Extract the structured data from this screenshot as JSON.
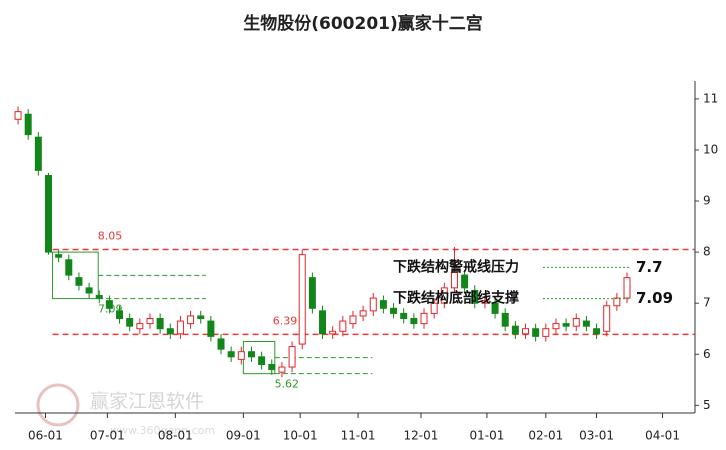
{
  "chart_data": {
    "type": "candlestick",
    "title": "生物股份(600201)赢家十二宫",
    "open": [
      10.6,
      10.7,
      10.25,
      9.5,
      7.95,
      7.85,
      7.5,
      7.3,
      7.15,
      7.05,
      6.85,
      6.7,
      6.5,
      6.6,
      6.7,
      6.5,
      6.4,
      6.6,
      6.75,
      6.65,
      6.3,
      6.05,
      5.9,
      6.05,
      5.95,
      5.8,
      5.65,
      5.75,
      6.2,
      7.5,
      6.85,
      6.4,
      6.45,
      6.6,
      6.75,
      6.85,
      7.05,
      6.9,
      6.8,
      6.7,
      6.6,
      6.8,
      7.0,
      7.3,
      7.55,
      7.25,
      7.0,
      7.0,
      6.8,
      6.55,
      6.4,
      6.5,
      6.35,
      6.5,
      6.6,
      6.55,
      6.65,
      6.5,
      6.45,
      6.95,
      7.1
    ],
    "high": [
      10.85,
      10.8,
      10.35,
      9.55,
      8.05,
      7.95,
      7.6,
      7.4,
      7.25,
      7.15,
      6.95,
      6.8,
      6.7,
      6.8,
      6.8,
      6.6,
      6.75,
      6.85,
      6.85,
      6.75,
      6.4,
      6.15,
      6.15,
      6.15,
      6.05,
      5.9,
      5.85,
      6.25,
      8.05,
      7.6,
      6.95,
      6.55,
      6.75,
      6.85,
      6.95,
      7.2,
      7.15,
      7.0,
      6.9,
      6.8,
      6.9,
      7.1,
      7.4,
      8.1,
      7.65,
      7.35,
      7.15,
      7.1,
      6.9,
      6.65,
      6.6,
      6.6,
      6.6,
      6.7,
      6.7,
      6.8,
      6.75,
      6.6,
      7.05,
      7.2,
      7.6
    ],
    "low": [
      10.5,
      10.2,
      9.5,
      7.95,
      7.8,
      7.45,
      7.25,
      7.1,
      7.0,
      6.8,
      6.6,
      6.45,
      6.4,
      6.5,
      6.4,
      6.3,
      6.3,
      6.5,
      6.6,
      6.25,
      6.0,
      5.85,
      5.8,
      5.85,
      5.7,
      5.6,
      5.55,
      5.65,
      6.1,
      6.8,
      6.3,
      6.3,
      6.35,
      6.5,
      6.65,
      6.75,
      6.8,
      6.7,
      6.6,
      6.5,
      6.5,
      6.7,
      6.9,
      7.2,
      7.2,
      6.9,
      6.9,
      6.7,
      6.45,
      6.3,
      6.3,
      6.25,
      6.25,
      6.4,
      6.45,
      6.45,
      6.45,
      6.3,
      6.35,
      6.85,
      7.0
    ],
    "close": [
      10.75,
      10.3,
      9.6,
      8.0,
      7.9,
      7.55,
      7.35,
      7.2,
      7.1,
      6.9,
      6.7,
      6.55,
      6.6,
      6.7,
      6.5,
      6.4,
      6.65,
      6.75,
      6.7,
      6.35,
      6.1,
      5.95,
      6.05,
      5.95,
      5.8,
      5.7,
      5.75,
      6.15,
      7.95,
      6.9,
      6.4,
      6.45,
      6.65,
      6.75,
      6.85,
      7.1,
      6.9,
      6.8,
      6.7,
      6.6,
      6.8,
      7.0,
      7.3,
      7.6,
      7.3,
      7.0,
      7.05,
      6.8,
      6.55,
      6.4,
      6.5,
      6.35,
      6.5,
      6.6,
      6.55,
      6.7,
      6.55,
      6.4,
      6.95,
      7.1,
      7.5
    ],
    "up_color": "#e0262b",
    "down_color": "#13861a",
    "xlim": [
      -0.3,
      66.7
    ],
    "xticks": [
      {
        "value": 2.7,
        "label": "06-01"
      },
      {
        "value": 8.8,
        "label": "07-01"
      },
      {
        "value": 15.5,
        "label": "08-01"
      },
      {
        "value": 22.2,
        "label": "09-01"
      },
      {
        "value": 27.8,
        "label": "10-01"
      },
      {
        "value": 33.5,
        "label": "11-01"
      },
      {
        "value": 39.7,
        "label": "12-01"
      },
      {
        "value": 46.2,
        "label": "01-01"
      },
      {
        "value": 52.0,
        "label": "02-01"
      },
      {
        "value": 57.0,
        "label": "03-01"
      },
      {
        "value": 63.5,
        "label": "04-01"
      }
    ],
    "ylim": [
      4.85,
      11.35
    ],
    "yticks": [
      5,
      6,
      7,
      8,
      9,
      10,
      11
    ],
    "reference_lines": [
      {
        "value": 8.05,
        "color": "#e83a3a"
      },
      {
        "value": 6.39,
        "color": "#e83a3a"
      }
    ],
    "zones": [
      {
        "start": 3.4,
        "end": 7.9,
        "extend": 18.5,
        "high": 8.0,
        "low": 7.09,
        "color": "#2e9a2e"
      },
      {
        "start": 22.2,
        "end": 25.3,
        "extend": 34.9,
        "high": 6.25,
        "low": 5.62,
        "color": "#2e9a2e"
      }
    ],
    "annotations": [
      {
        "text": "下跌结构警戒线压力",
        "value": 7.7
      },
      {
        "text": "下跌结构底部线支撑",
        "value": 7.09
      }
    ]
  },
  "watermark": {
    "name": "赢家江恩软件",
    "url": "www.360gann.com"
  }
}
